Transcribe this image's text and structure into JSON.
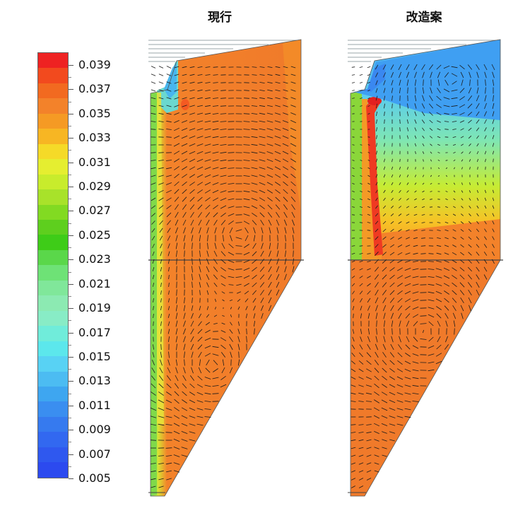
{
  "panels": [
    {
      "id": "current",
      "title": "現行"
    },
    {
      "id": "modified",
      "title": "改造案"
    }
  ],
  "colorbar": {
    "ticks": [
      "0.039",
      "0.037",
      "0.035",
      "0.033",
      "0.031",
      "0.029",
      "0.027",
      "0.025",
      "0.023",
      "0.021",
      "0.019",
      "0.017",
      "0.015",
      "0.013",
      "0.011",
      "0.009",
      "0.007",
      "0.005"
    ],
    "colors": [
      "#ee2222",
      "#f24a1e",
      "#f26a20",
      "#f3822a",
      "#f59a24",
      "#f7b623",
      "#f5da28",
      "#e5ee30",
      "#c8ec2c",
      "#a8e22a",
      "#82da22",
      "#5ecf1e",
      "#3ecc18",
      "#5ad74a",
      "#6ee276",
      "#80e79a",
      "#8ceab2",
      "#88ecc6",
      "#70ecda",
      "#5ce7ec",
      "#58d2f4",
      "#4cbcf2",
      "#3ea6f0",
      "#3a8ef0",
      "#367aef",
      "#3268f0",
      "#2f58ef",
      "#2c4aef"
    ]
  }
}
